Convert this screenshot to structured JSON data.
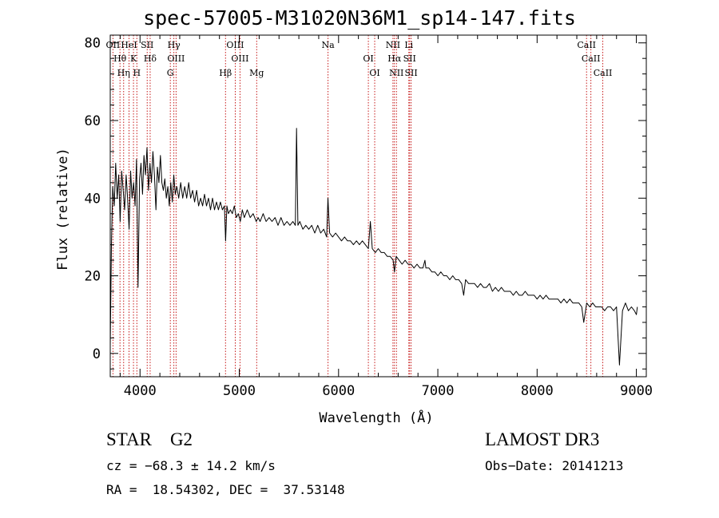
{
  "chart_data": {
    "type": "line",
    "title": "spec-57005-M31020N36M1_sp14-147.fits",
    "xlabel": "Wavelength (Å)",
    "ylabel": "Flux (relative)",
    "xlim": [
      3700,
      9100
    ],
    "ylim": [
      -6,
      82
    ],
    "xticks": [
      4000,
      5000,
      6000,
      7000,
      8000,
      9000
    ],
    "yticks": [
      0,
      20,
      40,
      60,
      80
    ],
    "series": [
      {
        "name": "spectrum",
        "color": "#000000",
        "x": [
          3700,
          3712,
          3725,
          3740,
          3755,
          3770,
          3785,
          3800,
          3815,
          3830,
          3845,
          3860,
          3875,
          3890,
          3905,
          3920,
          3935,
          3950,
          3965,
          3980,
          3995,
          4010,
          4025,
          4040,
          4055,
          4070,
          4085,
          4100,
          4115,
          4130,
          4145,
          4160,
          4175,
          4190,
          4205,
          4220,
          4235,
          4250,
          4265,
          4280,
          4295,
          4310,
          4325,
          4340,
          4355,
          4370,
          4390,
          4410,
          4430,
          4450,
          4470,
          4490,
          4510,
          4530,
          4550,
          4570,
          4590,
          4610,
          4630,
          4650,
          4670,
          4690,
          4710,
          4730,
          4750,
          4770,
          4790,
          4810,
          4830,
          4850,
          4862,
          4875,
          4890,
          4910,
          4930,
          4950,
          4970,
          4990,
          5010,
          5030,
          5050,
          5080,
          5110,
          5140,
          5170,
          5190,
          5210,
          5240,
          5270,
          5300,
          5330,
          5360,
          5390,
          5420,
          5450,
          5480,
          5510,
          5540,
          5565,
          5577,
          5590,
          5610,
          5640,
          5670,
          5700,
          5730,
          5760,
          5790,
          5820,
          5850,
          5880,
          5893,
          5910,
          5940,
          5970,
          6000,
          6030,
          6060,
          6090,
          6120,
          6150,
          6180,
          6210,
          6240,
          6270,
          6300,
          6320,
          6340,
          6370,
          6400,
          6430,
          6460,
          6490,
          6520,
          6550,
          6563,
          6580,
          6610,
          6640,
          6670,
          6700,
          6730,
          6760,
          6790,
          6820,
          6850,
          6870,
          6880,
          6910,
          6940,
          6970,
          7000,
          7030,
          7060,
          7090,
          7120,
          7150,
          7180,
          7210,
          7240,
          7260,
          7280,
          7310,
          7340,
          7370,
          7400,
          7430,
          7460,
          7490,
          7520,
          7550,
          7580,
          7610,
          7640,
          7670,
          7700,
          7730,
          7760,
          7790,
          7820,
          7850,
          7880,
          7910,
          7940,
          7970,
          8000,
          8030,
          8060,
          8090,
          8120,
          8150,
          8180,
          8210,
          8240,
          8270,
          8300,
          8330,
          8360,
          8390,
          8420,
          8450,
          8470,
          8500,
          8530,
          8560,
          8590,
          8620,
          8650,
          8680,
          8710,
          8740,
          8770,
          8800,
          8830,
          8860,
          8890,
          8920,
          8950,
          8980,
          9000,
          9010
        ],
        "y": [
          2,
          28,
          43,
          38,
          49,
          40,
          46,
          34,
          47,
          42,
          37,
          46,
          40,
          32,
          47,
          40,
          44,
          38,
          50,
          17,
          45,
          49,
          41,
          51,
          46,
          53,
          42,
          49,
          44,
          52,
          46,
          37,
          48,
          44,
          51,
          44,
          42,
          45,
          40,
          43,
          38,
          44,
          39,
          46,
          41,
          43,
          40,
          44,
          40,
          43,
          40,
          44,
          40,
          42,
          39,
          42,
          38,
          40,
          38,
          41,
          38,
          40,
          37,
          40,
          37,
          39,
          37,
          39,
          37,
          38,
          29,
          38,
          36,
          37,
          36,
          38,
          35,
          36,
          34,
          37,
          35,
          37,
          35,
          36,
          34,
          35,
          34,
          36,
          34,
          35,
          34,
          35,
          33,
          35,
          33,
          34,
          33,
          34,
          33,
          58,
          33,
          34,
          32,
          33,
          32,
          33,
          31,
          33,
          31,
          32,
          30,
          40,
          31,
          30,
          31,
          30,
          29,
          30,
          29,
          29,
          28,
          29,
          28,
          29,
          28,
          27,
          34,
          27,
          26,
          27,
          26,
          26,
          25,
          25,
          24,
          21,
          25,
          24,
          23,
          24,
          23,
          23,
          22,
          23,
          22,
          22,
          24,
          22,
          22,
          21,
          21,
          20,
          21,
          20,
          20,
          19,
          20,
          19,
          19,
          18,
          15,
          19,
          18,
          18,
          18,
          17,
          18,
          17,
          17,
          18,
          16,
          17,
          16,
          17,
          16,
          16,
          16,
          15,
          16,
          15,
          15,
          16,
          15,
          15,
          15,
          14,
          15,
          14,
          15,
          14,
          14,
          14,
          14,
          13,
          14,
          13,
          14,
          13,
          13,
          13,
          12,
          8,
          13,
          12,
          13,
          12,
          12,
          12,
          11,
          12,
          12,
          11,
          12,
          -3,
          11,
          13,
          11,
          12,
          11,
          10,
          12
        ]
      }
    ],
    "emission_lines": [
      {
        "name": "OII",
        "wavelength": 3727
      },
      {
        "name": "Hθ",
        "wavelength": 3798
      },
      {
        "name": "Hη",
        "wavelength": 3835
      },
      {
        "name": "HeI",
        "wavelength": 3889
      },
      {
        "name": "K",
        "wavelength": 3934
      },
      {
        "name": "H",
        "wavelength": 3968
      },
      {
        "name": "SII",
        "wavelength": 4072
      },
      {
        "name": "Hδ",
        "wavelength": 4102
      },
      {
        "name": "G",
        "wavelength": 4305
      },
      {
        "name": "Hγ",
        "wavelength": 4341
      },
      {
        "name": "OIII",
        "wavelength": 4363
      },
      {
        "name": "Hβ",
        "wavelength": 4861
      },
      {
        "name": "OIII",
        "wavelength": 4959
      },
      {
        "name": "OIII",
        "wavelength": 5007
      },
      {
        "name": "Mg",
        "wavelength": 5175
      },
      {
        "name": "Na",
        "wavelength": 5894
      },
      {
        "name": "OI",
        "wavelength": 6300
      },
      {
        "name": "OI",
        "wavelength": 6364
      },
      {
        "name": "NII",
        "wavelength": 6548
      },
      {
        "name": "Hα",
        "wavelength": 6563
      },
      {
        "name": "NII",
        "wavelength": 6583
      },
      {
        "name": "Li",
        "wavelength": 6708
      },
      {
        "name": "SII",
        "wavelength": 6716
      },
      {
        "name": "SII",
        "wavelength": 6731
      },
      {
        "name": "CaII",
        "wavelength": 8498
      },
      {
        "name": "CaII",
        "wavelength": 8542
      },
      {
        "name": "CaII",
        "wavelength": 8662
      }
    ],
    "line_color": "#c00000"
  },
  "info": {
    "object_class": "STAR    G2",
    "survey": "LAMOST DR3",
    "cz": "cz = −68.3 ± 14.2 km/s",
    "obs_date": "Obs−Date: 20141213",
    "radec": "RA =  18.54302, DEC =  37.53148"
  }
}
